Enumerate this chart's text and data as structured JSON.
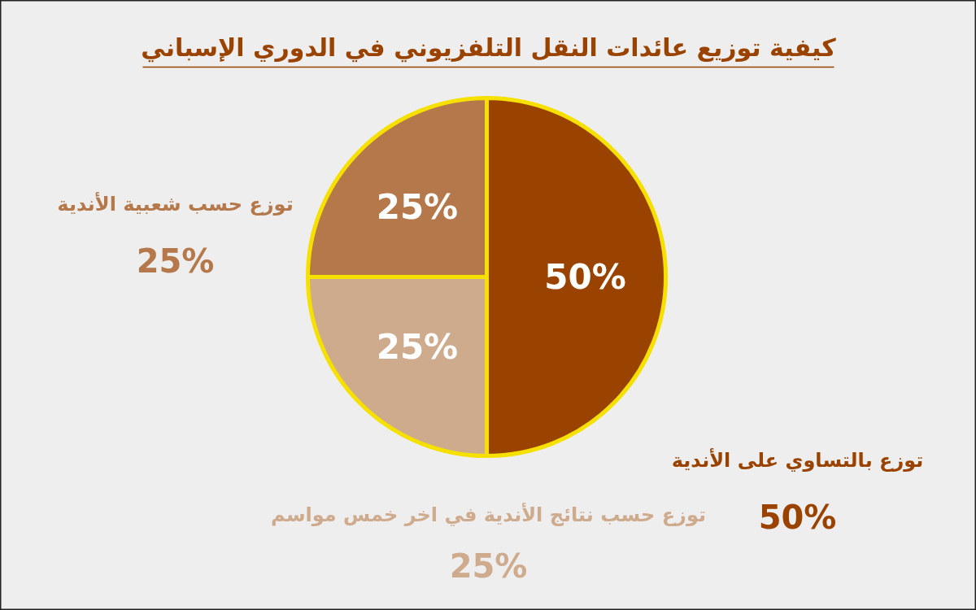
{
  "chart_data": {
    "type": "pie",
    "title": "كيفية توزيع عائدات النقل التلفزيوني في الدوري الإسباني",
    "categories": [
      "توزع بالتساوي على الأندية",
      "توزع حسب نتائج الأندية في اخر خمس مواسم",
      "توزع حسب شعبية الأندية"
    ],
    "values": [
      50,
      25,
      25
    ],
    "value_labels": [
      "50%",
      "25%",
      "25%"
    ],
    "colors": [
      "#9a4300",
      "#cfab8e",
      "#b5784a"
    ]
  }
}
